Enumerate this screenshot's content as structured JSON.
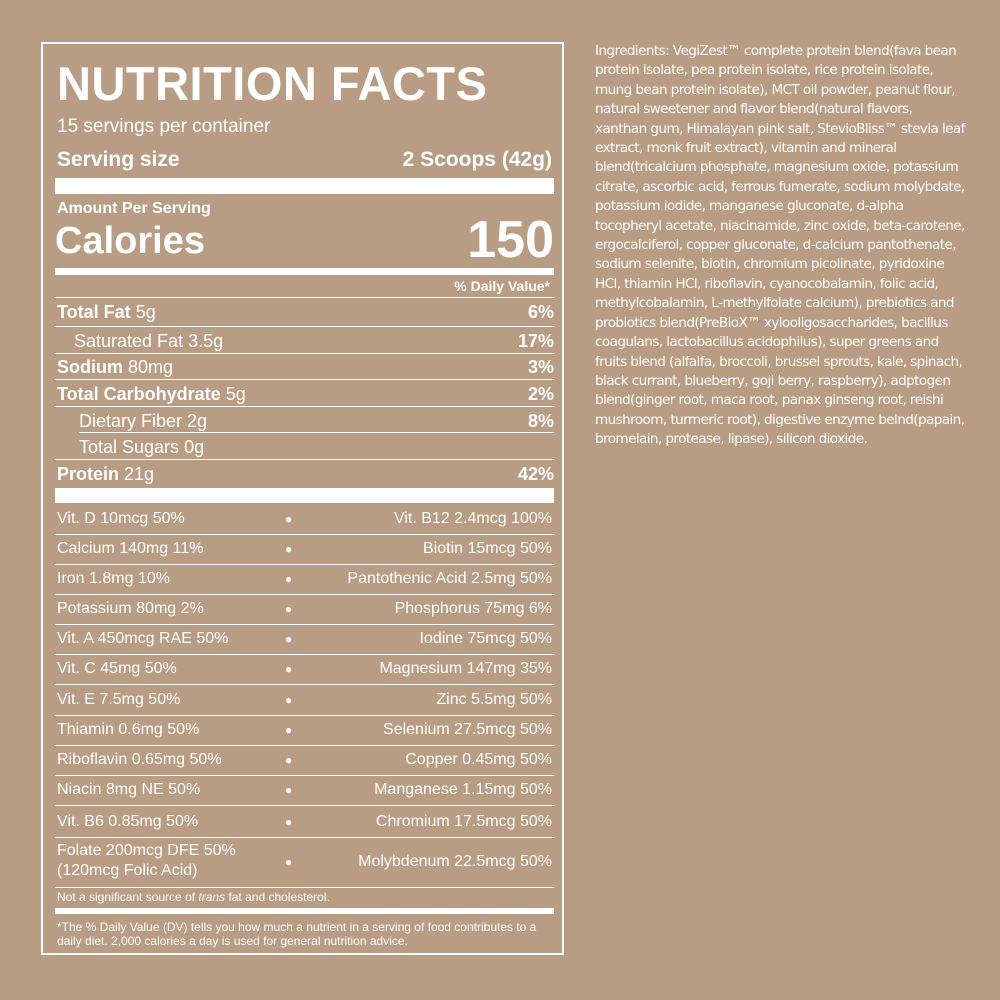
{
  "label": {
    "title": "NUTRITION FACTS",
    "servings_per_container": "15 servings per container",
    "serving_size_label": "Serving size",
    "serving_size_value": "2 Scoops (42g)",
    "amount_per_serving": "Amount Per Serving",
    "calories_label": "Calories",
    "calories_value": "150",
    "daily_value_header": "% Daily Value*",
    "nutrients": [
      {
        "name": "Total Fat",
        "amount": "5g",
        "dv": "6%"
      },
      {
        "name": "Saturated Fat",
        "amount": "3.5g",
        "dv": "17%"
      },
      {
        "name": "Sodium",
        "amount": "80mg",
        "dv": "3%"
      },
      {
        "name": "Total Carbohydrate",
        "amount": "5g",
        "dv": "2%"
      },
      {
        "name": "Dietary Fiber",
        "amount": "2g",
        "dv": "8%"
      },
      {
        "name": "Total Sugars",
        "amount": "0g",
        "dv": ""
      },
      {
        "name": "Protein",
        "amount": "21g",
        "dv": "42%"
      }
    ],
    "vitamins_left": [
      "Vit. D 10mcg 50%",
      "Calcium 140mg 11%",
      "Iron 1.8mg 10%",
      "Potassium 80mg 2%",
      "Vit. A 450mcg RAE 50%",
      "Vit. C 45mg 50%",
      "Vit. E 7.5mg 50%",
      "Thiamin 0.6mg 50%",
      "Riboflavin 0.65mg 50%",
      "Niacin 8mg NE 50%",
      "Vit. B6 0.85mg 50%",
      "Folate 200mcg DFE 50%"
    ],
    "folate_subline": "(120mcg Folic Acid)",
    "vitamins_right": [
      "Vit. B12 2.4mcg 100%",
      "Biotin 15mcg 50%",
      "Pantothenic Acid 2.5mg 50%",
      "Phosphorus 75mg 6%",
      "Iodine 75mcg 50%",
      "Magnesium 147mg 35%",
      "Zinc 5.5mg 50%",
      "Selenium 27.5mcg 50%",
      "Copper 0.45mg 50%",
      "Manganese 1.15mg 50%",
      "Chromium 17.5mcg 50%",
      "Molybdenum 22.5mcg 50%"
    ],
    "bullet": "●",
    "not_significant_pre": "Not a significant source of ",
    "not_significant_italic": "trans",
    "not_significant_post": " fat and cholesterol.",
    "footnote": "*The % Daily Value (DV) tells you how much a nutrient in a serving of food contributes to a daily diet. 2,000 calories a day is used for general nutrition advice."
  },
  "ingredients": "Ingredients: VegiZest™ complete protein blend(fava bean protein isolate, pea protein isolate, rice protein isolate, mung bean protein isolate), MCT oil powder, peanut flour, natural sweetener and flavor blend(natural flavors, xanthan gum, Himalayan pink salt, StevioBliss™ stevia leaf extract, monk fruit extract), vitamin and mineral blend(tricalcium phosphate, magnesium oxide, potassium citrate, ascorbic acid, ferrous fumerate, sodium molybdate, potassium iodide, manganese gluconate, d-alpha tocopheryl acetate, niacinamide, zinc oxide, beta-carotene, ergocalciferol, copper gluconate, d-calcium pantothenate, sodium selenite, biotin, chromium picolinate, pyridoxine HCl, thiamin HCl, riboflavin, cyanocobalamin, folic acid, methylcobalamin, L-methylfolate calcium), prebiotics and probiotics blend(PreBioX™ xylooligosaccharides, bacillus coagulans, lactobacillus acidophilus), super greens and fruits blend (alfalfa, broccoli, brussel sprouts, kale, spinach, black currant, blueberry, goji berry, raspberry), adptogen blend(ginger root, maca root, panax ginseng root, reishi mushroom, turmeric root), digestive enzyme belnd(papain, bromelain, protease, lipase), silicon dioxide.",
  "colors": {
    "background": "#b89d84",
    "foreground": "#ffffff"
  }
}
